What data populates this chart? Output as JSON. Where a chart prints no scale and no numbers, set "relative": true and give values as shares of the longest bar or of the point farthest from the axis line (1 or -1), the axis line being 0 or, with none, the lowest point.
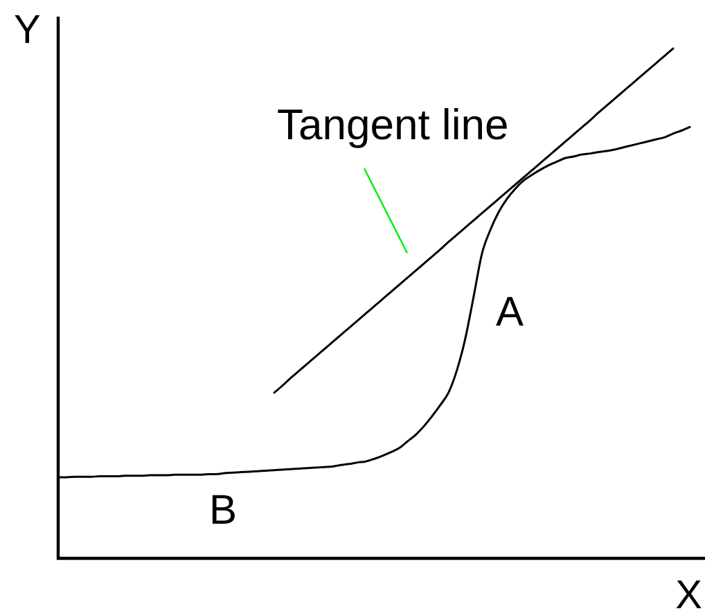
{
  "chart_data": {
    "type": "line",
    "xlabel": "X",
    "ylabel": "Y",
    "relative": true,
    "categories": [
      null,
      null,
      null,
      null,
      null,
      null,
      null,
      null,
      null,
      null,
      null,
      null,
      null,
      null,
      null,
      null,
      null,
      null,
      null,
      null,
      null,
      null,
      null,
      null,
      null,
      null,
      null,
      null,
      null,
      null,
      null,
      null,
      null,
      null,
      null,
      null,
      null,
      null,
      null,
      null,
      null,
      null,
      null,
      null,
      null,
      null,
      null,
      null,
      null,
      null,
      null,
      null,
      null,
      null,
      null,
      null,
      null,
      null,
      null,
      null,
      null,
      null,
      null,
      null,
      null,
      null,
      null,
      null,
      null,
      null,
      null,
      null,
      null,
      null,
      null,
      null,
      null
    ],
    "series": [
      {
        "color": "#000000",
        "values": [
          0.159,
          0.159,
          0.16,
          0.16,
          0.16,
          0.161,
          0.161,
          0.161,
          0.162,
          0.162,
          0.162,
          0.163,
          0.163,
          0.163,
          0.164,
          0.164,
          0.164,
          0.164,
          0.165,
          0.165,
          0.167,
          0.168,
          0.169,
          0.17,
          0.171,
          0.172,
          0.173,
          0.174,
          0.175,
          0.176,
          0.177,
          0.178,
          0.179,
          0.18,
          0.183,
          0.185,
          0.188,
          0.19,
          0.195,
          0.201,
          0.208,
          0.216,
          0.229,
          0.242,
          0.259,
          0.279,
          0.301,
          0.326,
          0.37,
          0.432,
          0.514,
          0.598,
          0.644,
          0.679,
          0.705,
          0.725,
          0.741,
          0.752,
          0.762,
          0.771,
          0.778,
          0.785,
          0.788,
          0.792,
          0.794,
          0.797,
          0.799,
          0.802,
          0.806,
          0.81,
          0.814,
          0.818,
          0.822,
          0.826,
          0.833,
          0.839,
          0.846
        ]
      },
      {
        "name": "Tangent line",
        "color": "#000000",
        "values": [
          null,
          null,
          null,
          null,
          null,
          null,
          null,
          null,
          null,
          null,
          null,
          null,
          null,
          null,
          null,
          null,
          null,
          null,
          null,
          null,
          null,
          null,
          null,
          null,
          null,
          null,
          0.325,
          0.339,
          0.354,
          0.368,
          0.382,
          0.396,
          0.41,
          0.424,
          0.438,
          0.452,
          0.466,
          0.48,
          0.494,
          0.508,
          0.522,
          0.536,
          0.55,
          0.564,
          0.578,
          0.592,
          0.606,
          0.621,
          0.635,
          0.649,
          0.663,
          0.677,
          0.691,
          0.705,
          0.719,
          0.733,
          0.747,
          0.761,
          0.775,
          0.789,
          0.803,
          0.817,
          0.831,
          0.845,
          0.859,
          0.874,
          0.888,
          0.902,
          0.916,
          0.93,
          0.944,
          0.958,
          0.972,
          0.986,
          1.0,
          null,
          null
        ]
      }
    ],
    "annotations": [
      "A",
      "B"
    ]
  }
}
